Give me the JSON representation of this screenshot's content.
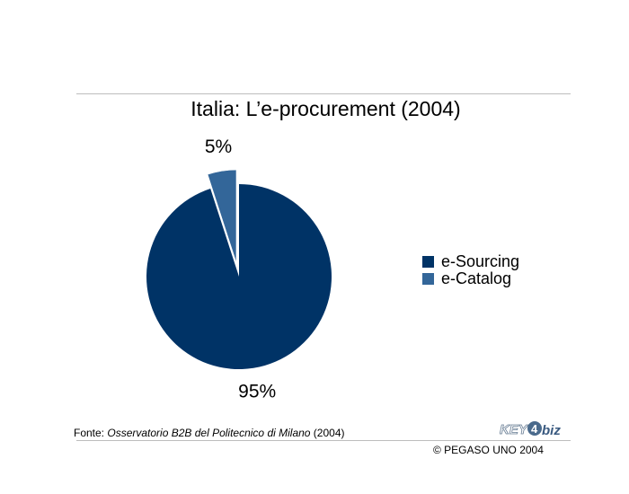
{
  "chart_data": {
    "type": "pie",
    "title": "Italia: L’e-procurement (2004)",
    "slices": [
      {
        "label": "e-Sourcing",
        "value": 95,
        "value_label": "95%",
        "color": "#003366",
        "exploded": false
      },
      {
        "label": "e-Catalog",
        "value": 5,
        "value_label": "5%",
        "color": "#336699",
        "exploded": true
      }
    ],
    "legend_position": "right"
  },
  "footer": {
    "source_prefix": "Fonte: ",
    "source_name": "Osservatorio B2B del Politecnico di Milano",
    "source_suffix": " (2004)",
    "copyright": "© PEGASO UNO 2004",
    "logo_text_left": "KEY",
    "logo_text_num": "4",
    "logo_text_right": "biz"
  }
}
